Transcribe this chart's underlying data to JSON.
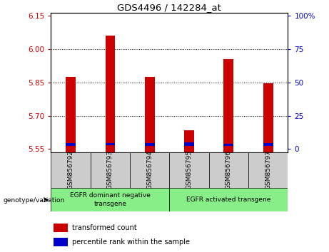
{
  "title": "GDS4496 / 142284_at",
  "samples": [
    "GSM856792",
    "GSM856793",
    "GSM856794",
    "GSM856795",
    "GSM856796",
    "GSM856797"
  ],
  "red_values": [
    5.875,
    6.06,
    5.875,
    5.635,
    5.955,
    5.845
  ],
  "blue_values": [
    5.565,
    5.568,
    5.565,
    5.565,
    5.565,
    5.565
  ],
  "blue_heights": [
    0.012,
    0.01,
    0.012,
    0.016,
    0.01,
    0.012
  ],
  "ylim_min": 5.535,
  "ylim_max": 6.165,
  "yticks": [
    5.55,
    5.7,
    5.85,
    6.0,
    6.15
  ],
  "right_yticks": [
    0,
    25,
    50,
    75,
    100
  ],
  "right_tick_positions": [
    5.55,
    5.7125,
    5.875,
    6.0375,
    6.2
  ],
  "grid_values": [
    6.0,
    5.85,
    5.7
  ],
  "group1_label": "EGFR dominant negative\ntransgene",
  "group2_label": "EGFR activated transgene",
  "group1_indices": [
    0,
    1,
    2
  ],
  "group2_indices": [
    3,
    4,
    5
  ],
  "legend_red_label": "transformed count",
  "legend_blue_label": "percentile rank within the sample",
  "genotype_label": "genotype/variation",
  "left_tick_color": "#cc0000",
  "right_tick_color": "#0000cc",
  "bar_color_red": "#cc0000",
  "bar_color_blue": "#0000cc",
  "group_bg": "#88ee88",
  "sample_bg": "#cccccc",
  "bar_width": 0.25
}
